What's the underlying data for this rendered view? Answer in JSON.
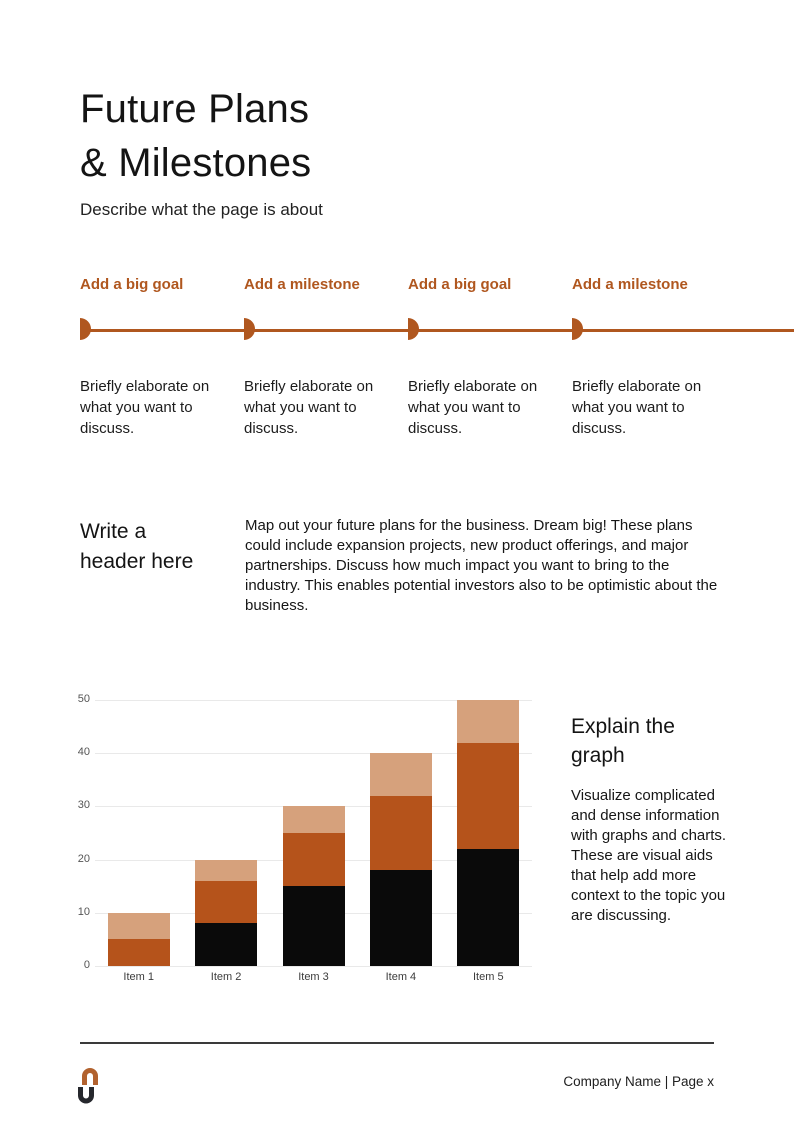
{
  "page": {
    "title_line1": "Future Plans",
    "title_line2": "& Milestones",
    "subtitle": "Describe what the page is about"
  },
  "colors": {
    "accent": "#b0571f",
    "logo_top": "#b2622e",
    "logo_bottom": "#26282d"
  },
  "timeline": {
    "items": [
      {
        "label": "Add a big goal",
        "description": "Briefly elaborate on what you want to discuss."
      },
      {
        "label": "Add a milestone",
        "description": "Briefly elaborate on what you want to discuss."
      },
      {
        "label": "Add a big goal",
        "description": "Briefly elaborate on what you want to discuss."
      },
      {
        "label": "Add a milestone",
        "description": "Briefly elaborate on what you want to discuss."
      }
    ]
  },
  "mid_section": {
    "heading": "Write a header here",
    "paragraph": "Map out your future plans for the business. Dream big! These plans could include expansion projects, new product offerings, and major partnerships. Discuss how much impact you want to bring to the industry. This enables potential investors also to be optimistic about the business."
  },
  "chart_data": {
    "type": "bar",
    "stacked": true,
    "title": "",
    "xlabel": "",
    "ylabel": "",
    "categories": [
      "Item 1",
      "Item 2",
      "Item 3",
      "Item 4",
      "Item 5"
    ],
    "series": [
      {
        "name": "bottom-black",
        "color": "#0a0a0a",
        "values": [
          0,
          8,
          15,
          18,
          22
        ]
      },
      {
        "name": "middle-orange",
        "color": "#b5531b",
        "values": [
          5,
          8,
          10,
          14,
          20
        ]
      },
      {
        "name": "top-tan",
        "color": "#d6a17c",
        "values": [
          5,
          4,
          5,
          8,
          8
        ]
      }
    ],
    "ylim": [
      0,
      50
    ],
    "yticks": [
      0,
      10,
      20,
      30,
      40,
      50
    ],
    "grid": true,
    "legend_position": "none"
  },
  "graph_section": {
    "heading": "Explain the graph",
    "paragraph": "Visualize complicated and dense information with graphs and charts. These are visual aids that help add more context to the topic you are discussing."
  },
  "footer": {
    "text": "Company Name | Page x"
  }
}
